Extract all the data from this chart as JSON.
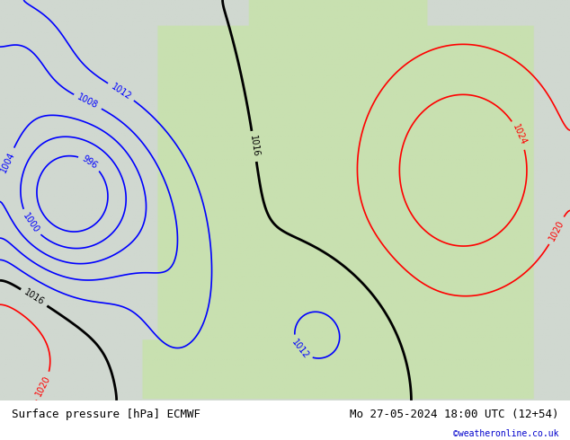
{
  "title_left": "Surface pressure [hPa] ECMWF",
  "title_right": "Mo 27-05-2024 18:00 UTC (12+54)",
  "credit": "©weatheronline.co.uk",
  "credit_color": "#0000cc",
  "bg_color": "#d0d8d0",
  "land_color": "#c8e0b0",
  "sea_color": "#d0e8f0",
  "contour_interval": 4,
  "pressure_min": 996,
  "pressure_max": 1028,
  "label_fontsize": 7,
  "title_fontsize": 9,
  "bottom_bar_color": "#e8e8e8",
  "fig_width": 6.34,
  "fig_height": 4.9
}
